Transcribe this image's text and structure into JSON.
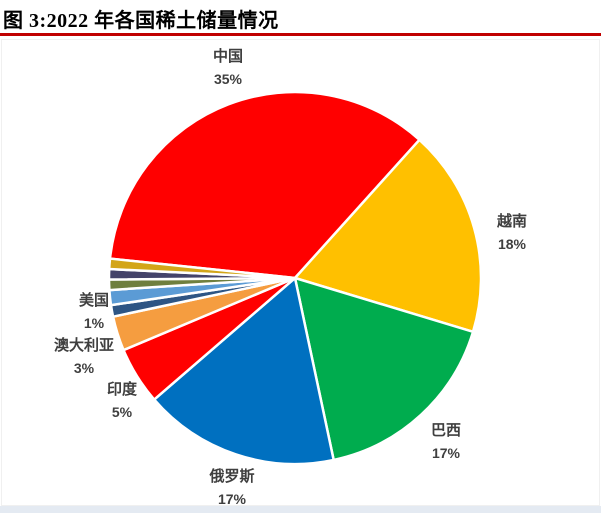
{
  "title": "图 3:2022 年各国稀土储量情况",
  "accent_rule_color": "#C00000",
  "label_text_color": "#3F3F3F",
  "chart_data": {
    "type": "pie",
    "title": "2022 年各国稀土储量情况",
    "legend": "none",
    "labels_position": "outside-end",
    "start_angle_clockwise_from_top_deg": 276,
    "slices": [
      {
        "label": "中国",
        "pct_label": "35%",
        "value": 35,
        "color": "#FF0000"
      },
      {
        "label": "越南",
        "pct_label": "18%",
        "value": 18,
        "color": "#FFC000"
      },
      {
        "label": "巴西",
        "pct_label": "17%",
        "value": 17,
        "color": "#00AC4E"
      },
      {
        "label": "俄罗斯",
        "pct_label": "17%",
        "value": 17,
        "color": "#0070C0"
      },
      {
        "label": "印度",
        "pct_label": "5%",
        "value": 5,
        "color": "#FF0000"
      },
      {
        "label": "澳大利亚",
        "pct_label": "3%",
        "value": 3,
        "color": "#F59D40"
      },
      {
        "label": "美国",
        "pct_label": "1%",
        "value": 1,
        "color": "#2E5584"
      },
      {
        "label": "",
        "pct_label": "",
        "value": 1.3,
        "color": "#5B9BD5"
      },
      {
        "label": "",
        "pct_label": "",
        "value": 0.9,
        "color": "#6F7F3E"
      },
      {
        "label": "",
        "pct_label": "",
        "value": 0.9,
        "color": "#44436A"
      },
      {
        "label": "",
        "pct_label": "",
        "value": 0.9,
        "color": "#D3A518"
      }
    ]
  }
}
